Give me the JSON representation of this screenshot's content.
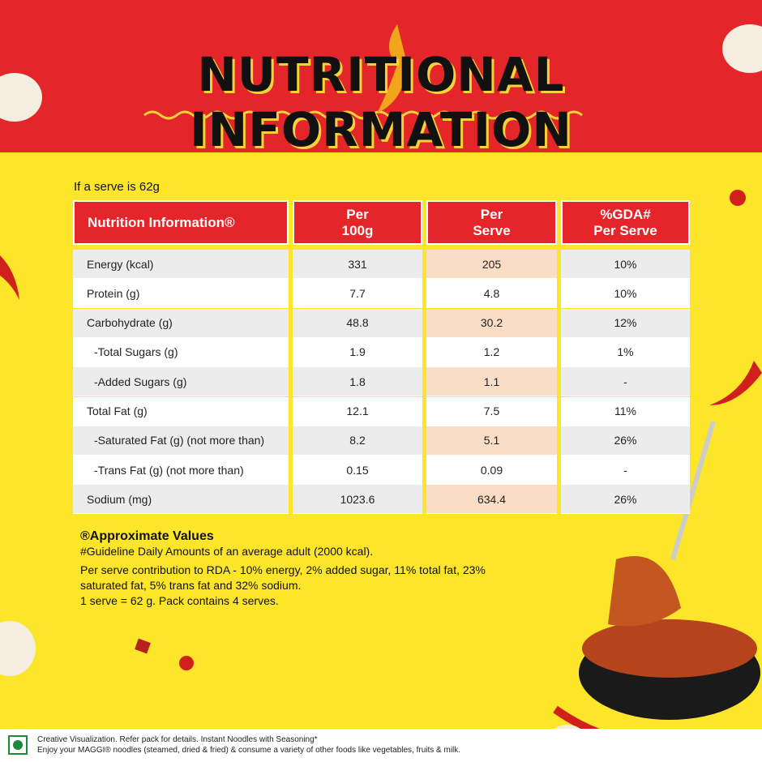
{
  "title": "NUTRITIONAL INFORMATION",
  "serve_note": "If a serve is 62g",
  "table": {
    "headers": [
      "Nutrition Information®",
      "Per 100g",
      "Per Serve",
      "%GDA# Per Serve"
    ],
    "rows": [
      [
        "Energy (kcal)",
        "331",
        "205",
        "10%"
      ],
      [
        "Protein (g)",
        "7.7",
        "4.8",
        "10%"
      ],
      [
        "Carbohydrate (g)",
        "48.8",
        "30.2",
        "12%"
      ],
      [
        "-Total Sugars (g)",
        "1.9",
        "1.2",
        "1%"
      ],
      [
        "-Added Sugars (g)",
        "1.8",
        "1.1",
        "-"
      ],
      [
        "Total Fat (g)",
        "12.1",
        "7.5",
        "11%"
      ],
      [
        "-Saturated Fat (g) (not more than)",
        "8.2",
        "5.1",
        "26%"
      ],
      [
        "-Trans Fat (g) (not more than)",
        "0.15",
        "0.09",
        "-"
      ],
      [
        "Sodium (mg)",
        "1023.6",
        "634.4",
        "26%"
      ]
    ]
  },
  "notes": [
    "®Approximate Values",
    "#Guideline Daily Amounts of an average adult  (2000 kcal).",
    "Per serve contribution to RDA - 10% energy, 2% added sugar, 11% total fat,  23% saturated fat, 5% trans fat and 32% sodium.",
    "1 serve = 62 g. Pack contains 4 serves."
  ],
  "footer": [
    "Creative Visualization. Refer pack for details. Instant Noodles with Seasoning*",
    "Enjoy your MAGGI® noodles (steamed, dried & fried) & consume a variety of other foods like vegetables, fruits & milk."
  ]
}
